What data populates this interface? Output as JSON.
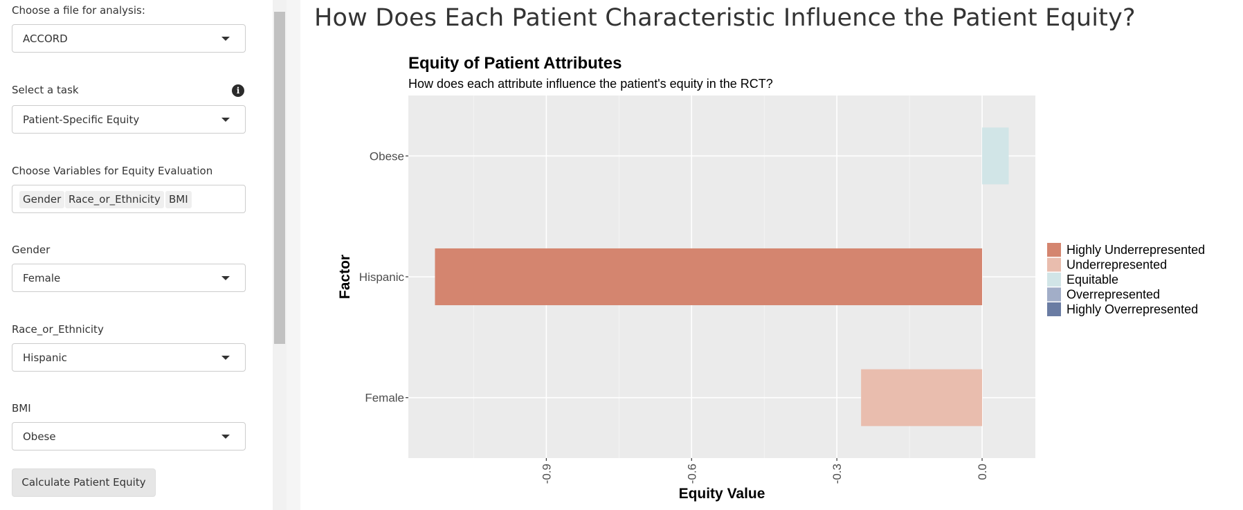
{
  "sidebar": {
    "file_label": "Choose a file for analysis:",
    "file_value": "ACCORD",
    "task_label": "Select a task",
    "task_value": "Patient-Specific Equity",
    "info_icon": "info-circle-icon",
    "vars_label": "Choose Variables for Equity Evaluation",
    "vars_selected": [
      "Gender",
      "Race_or_Ethnicity",
      "BMI"
    ],
    "gender_label": "Gender",
    "gender_value": "Female",
    "race_label": "Race_or_Ethnicity",
    "race_value": "Hispanic",
    "bmi_label": "BMI",
    "bmi_value": "Obese",
    "calculate_button": "Calculate Patient Equity"
  },
  "main": {
    "title": "How Does Each Patient Characteristic Influence the Patient Equity?"
  },
  "chart_data": {
    "type": "bar",
    "orientation": "horizontal",
    "title": "Equity of Patient Attributes",
    "subtitle": "How does each attribute influence the patient's equity in the RCT?",
    "xlabel": "Equity Value",
    "ylabel": "Factor",
    "categories": [
      "Obese",
      "Hispanic",
      "Female"
    ],
    "values": [
      0.055,
      -1.13,
      -0.25
    ],
    "value_classes": [
      "Equitable",
      "Highly Underrepresented",
      "Underrepresented"
    ],
    "xticks": [
      -0.9,
      -0.6,
      -0.3,
      0.0
    ],
    "xtick_labels": [
      "-0.9",
      "-0.6",
      "-0.3",
      "0.0"
    ],
    "xlim": [
      -1.185,
      0.11
    ],
    "grid": true,
    "panel_background": "#ebebeb",
    "legend_position": "right",
    "legend": [
      {
        "label": "Highly Underrepresented",
        "color": "#d4856f"
      },
      {
        "label": "Underrepresented",
        "color": "#e9bdae"
      },
      {
        "label": "Equitable",
        "color": "#d1e5e7"
      },
      {
        "label": "Overrepresented",
        "color": "#a2aec8"
      },
      {
        "label": "Highly Overrepresented",
        "color": "#6a7ca3"
      }
    ]
  }
}
